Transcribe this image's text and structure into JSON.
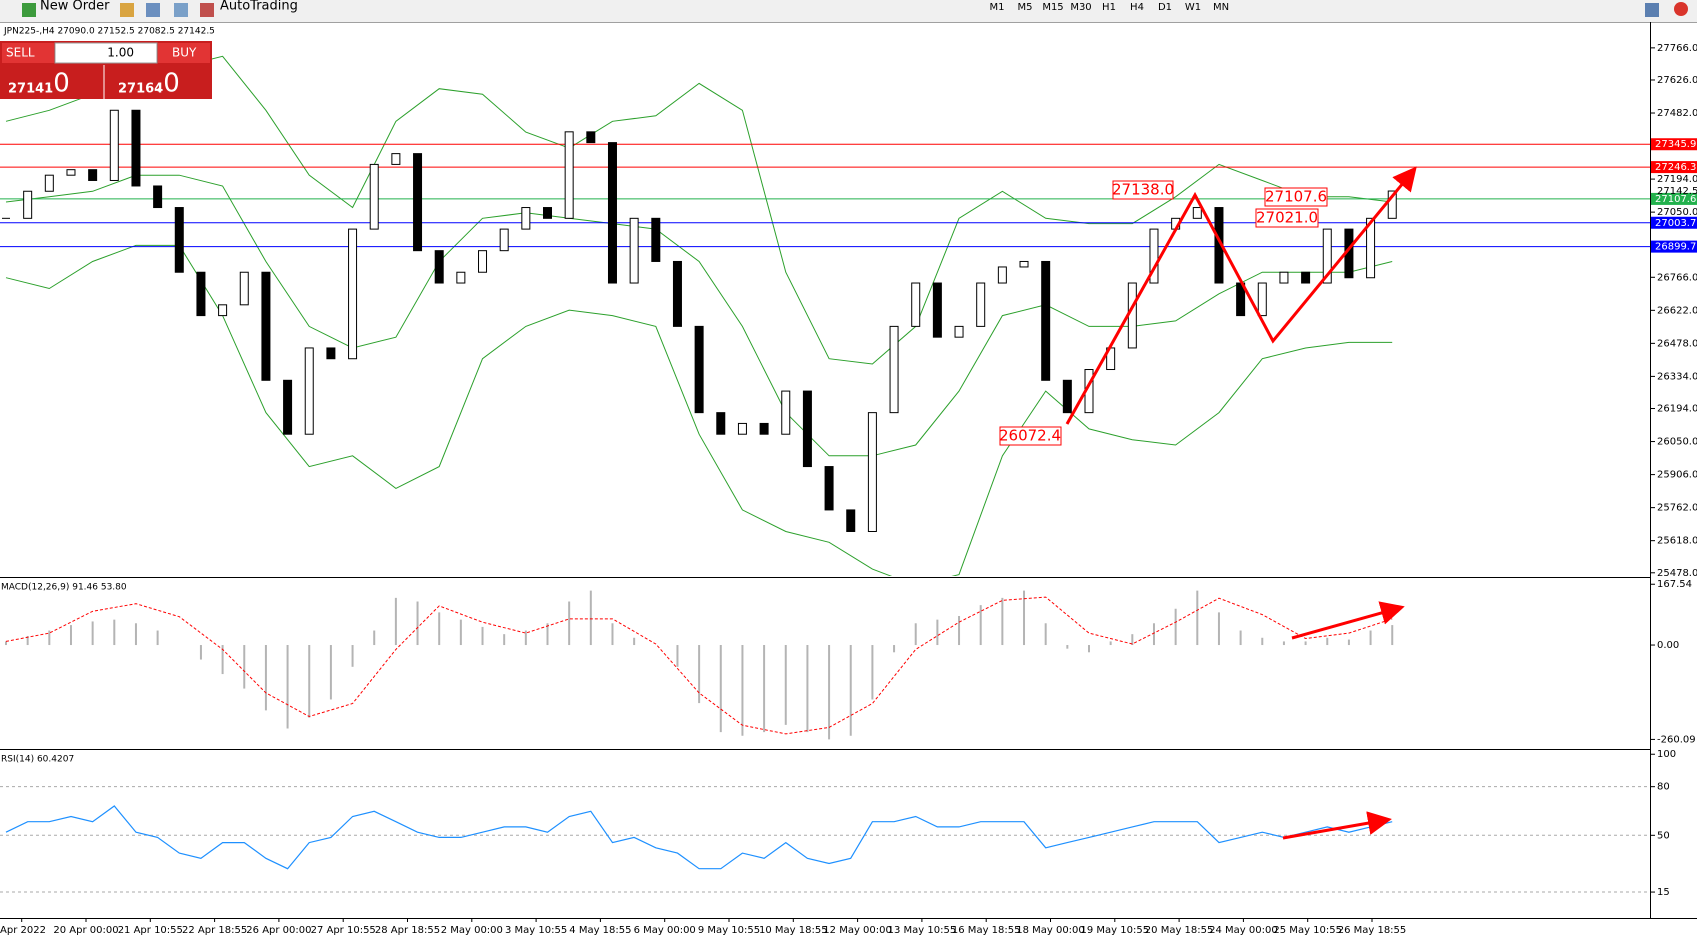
{
  "toolbar": {
    "new_order": "New Order",
    "auto_trading": "AutoTrading",
    "timeframes": [
      "M1",
      "M5",
      "M15",
      "M30",
      "H1",
      "H4",
      "D1",
      "W1",
      "MN"
    ]
  },
  "trade_panel": {
    "sell": "SELL",
    "buy": "BUY",
    "volume": "1.00",
    "sell_price": [
      "27141",
      ".0"
    ],
    "buy_price": [
      "27164",
      ".0"
    ]
  },
  "annotations": [
    "27138.0",
    "26072.4",
    "27107.6",
    "27021.0"
  ],
  "time_axis": {
    "labels": [
      "Apr 2022",
      "20 Apr 00:00",
      "21 Apr 10:55",
      "22 Apr 18:55",
      "26 Apr 00:00",
      "27 Apr 10:55",
      "28 Apr 18:55",
      "2 May 00:00",
      "3 May 10:55",
      "4 May 18:55",
      "6 May 00:00",
      "9 May 10:55",
      "10 May 18:55",
      "12 May 00:00",
      "13 May 10:55",
      "16 May 18:55",
      "18 May 00:00",
      "19 May 10:55",
      "20 May 18:55",
      "24 May 00:00",
      "25 May 10:55",
      "26 May 18:55"
    ]
  },
  "chart_data": [
    {
      "type": "candlestick",
      "title": "JPN225-,H4 27090.0 27152.5 27082.5 27142.5",
      "grid": false,
      "ylim": [
        25464,
        27870
      ],
      "yticks": [
        {
          "value": 27766,
          "label": "27766.0"
        },
        {
          "value": 27626,
          "label": "27626.0"
        },
        {
          "value": 27482,
          "label": "27482.0"
        },
        {
          "value": 27194,
          "label": "27194.0"
        },
        {
          "value": 27050,
          "label": "27050.0"
        },
        {
          "value": 26766,
          "label": "26766.0"
        },
        {
          "value": 26622,
          "label": "26622.0"
        },
        {
          "value": 26478,
          "label": "26478.0"
        },
        {
          "value": 26334,
          "label": "26334.0"
        },
        {
          "value": 26194,
          "label": "26194.0"
        },
        {
          "value": 26050,
          "label": "26050.0"
        },
        {
          "value": 25906,
          "label": "25906.0"
        },
        {
          "value": 25762,
          "label": "25762.0"
        },
        {
          "value": 25618,
          "label": "25618.0"
        },
        {
          "value": 25478,
          "label": "25478.0"
        }
      ],
      "close": [
        27023,
        27141,
        27211,
        27235,
        27188,
        27494,
        27164,
        27070,
        26788,
        26599,
        26646,
        26788,
        26317,
        26082,
        26458,
        26411,
        26976,
        27258,
        27305,
        26882,
        26741,
        26788,
        26882,
        26976,
        27070,
        27023,
        27400,
        27353,
        26741,
        27023,
        26835,
        26552,
        26176,
        26082,
        26129,
        26082,
        26270,
        25941,
        25752,
        25658,
        26176,
        26552,
        26741,
        26505,
        26552,
        26741,
        26811,
        26835,
        26317,
        26176,
        26364,
        26458,
        26741,
        26976,
        27023,
        27070,
        26741,
        26599,
        26741,
        26788,
        26741,
        26976,
        26764,
        27023,
        27142
      ],
      "bands": {
        "color": "#2ca02c",
        "upper": [
          27446,
          27494,
          27564,
          27635,
          27682,
          27729,
          27494,
          27211,
          27070,
          27446,
          27588,
          27564,
          27399,
          27329,
          27446,
          27470,
          27611,
          27494,
          26788,
          26411,
          26388,
          26552,
          27023,
          27141,
          27023,
          27000,
          27000,
          27117,
          27258,
          27188,
          27117,
          27117,
          27094
        ],
        "middle": [
          27094,
          27117,
          27141,
          27211,
          27211,
          27164,
          26835,
          26552,
          26458,
          26505,
          26835,
          27023,
          27047,
          27023,
          27000,
          26976,
          26835,
          26552,
          26176,
          25988,
          25988,
          26035,
          26270,
          26599,
          26646,
          26552,
          26552,
          26576,
          26694,
          26788,
          26788,
          26788,
          26835
        ],
        "lower": [
          26764,
          26717,
          26835,
          26905,
          26905,
          26599,
          26176,
          25941,
          25988,
          25846,
          25941,
          26411,
          26552,
          26623,
          26599,
          26552,
          26082,
          25752,
          25658,
          25611,
          25494,
          25423,
          25470,
          25988,
          26270,
          26105,
          26058,
          26035,
          26176,
          26411,
          26458,
          26482,
          26482
        ]
      },
      "levels": [
        {
          "value": 27345.9,
          "color": "#ff0000"
        },
        {
          "value": 27246.3,
          "color": "#ff0000"
        },
        {
          "value": 27107.6,
          "color": "#22b14c"
        },
        {
          "value": 27003.7,
          "color": "#0000ff"
        },
        {
          "value": 26899.7,
          "color": "#0000ff"
        }
      ],
      "price_label": 27142.5
    },
    {
      "type": "macd",
      "title": "MACD(12,26,9) 91.46 53.80",
      "ylim": [
        -281,
        182
      ],
      "yticks": [
        167.54,
        {
          "value": 0,
          "label": "0.00"
        },
        -260.09
      ],
      "histogram_color": "#b4b4b4",
      "signal_color": "#ff0000",
      "values": [
        10,
        25,
        40,
        55,
        65,
        70,
        60,
        40,
        0,
        -40,
        -80,
        -120,
        -180,
        -230,
        -200,
        -150,
        -60,
        40,
        130,
        120,
        90,
        70,
        50,
        30,
        40,
        60,
        120,
        150,
        60,
        20,
        0,
        -60,
        -160,
        -240,
        -250,
        -240,
        -220,
        -240,
        -260,
        -250,
        -150,
        -20,
        60,
        70,
        80,
        110,
        130,
        150,
        60,
        -10,
        -20,
        10,
        30,
        60,
        100,
        150,
        90,
        40,
        20,
        10,
        10,
        20,
        15,
        40,
        55
      ],
      "signal": [
        10,
        33,
        93,
        114,
        78,
        -12,
        -132,
        -197,
        -161,
        -12,
        108,
        63,
        33,
        72,
        72,
        3,
        -132,
        -221,
        -245,
        -227,
        -161,
        -12,
        63,
        123,
        132,
        33,
        3,
        63,
        129,
        84,
        18,
        33,
        72
      ]
    },
    {
      "type": "line",
      "title": "RSI(14) 60.4207",
      "ylim": [
        -1,
        102
      ],
      "yticks": [
        100,
        80,
        50,
        15
      ],
      "levels": [
        80,
        50,
        15
      ],
      "color": "#1e90ff",
      "values": [
        51.9,
        58.4,
        58.4,
        61.6,
        58.4,
        68.1,
        51.9,
        48.7,
        39.0,
        35.8,
        45.5,
        45.5,
        35.8,
        29.4,
        45.5,
        48.7,
        61.6,
        64.8,
        58.4,
        51.9,
        48.7,
        48.7,
        51.9,
        55.2,
        55.2,
        51.9,
        61.6,
        64.8,
        45.5,
        48.7,
        42.3,
        39.0,
        29.4,
        29.4,
        39.0,
        35.8,
        45.5,
        35.8,
        32.6,
        35.8,
        58.4,
        58.4,
        61.6,
        55.2,
        55.2,
        58.4,
        58.4,
        58.4,
        42.3,
        45.5,
        48.7,
        51.9,
        55.2,
        58.4,
        58.4,
        58.4,
        45.5,
        48.7,
        51.9,
        48.7,
        51.9,
        55.2,
        51.9,
        55.2,
        58.4
      ]
    }
  ]
}
